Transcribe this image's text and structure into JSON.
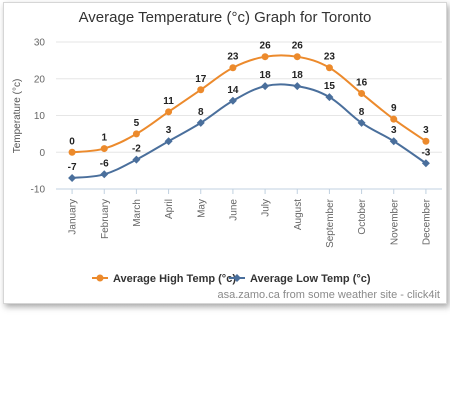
{
  "caption": "asa.zamo.ca from some weather site - click4it",
  "chart_data": {
    "type": "line",
    "title": "Average Temperature (°c) Graph for Toronto",
    "ylabel": "Temperature (°c)",
    "xlabel": "",
    "ylim": [
      -10,
      30
    ],
    "yticks": [
      -10,
      0,
      10,
      20,
      30
    ],
    "grid": true,
    "legend_position": "bottom",
    "categories": [
      "January",
      "February",
      "March",
      "April",
      "May",
      "June",
      "July",
      "August",
      "September",
      "October",
      "November",
      "December"
    ],
    "series": [
      {
        "name": "Average High Temp (°c)",
        "color": "#ec8a2c",
        "values": [
          0,
          1,
          5,
          11,
          17,
          23,
          26,
          26,
          23,
          16,
          9,
          3
        ]
      },
      {
        "name": "Average Low Temp (°c)",
        "color": "#4a6f9c",
        "values": [
          -7,
          -6,
          -2,
          3,
          8,
          14,
          18,
          18,
          15,
          8,
          3,
          -3
        ]
      }
    ]
  }
}
